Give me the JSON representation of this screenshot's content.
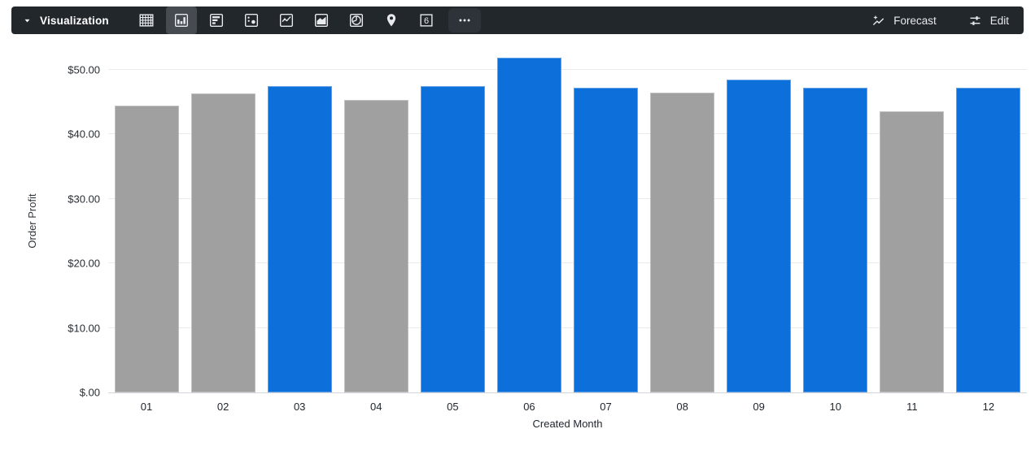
{
  "toolbar": {
    "title": "Visualization",
    "viz_types": [
      {
        "name": "table",
        "selected": false
      },
      {
        "name": "column-chart",
        "selected": true
      },
      {
        "name": "bar-chart",
        "selected": false
      },
      {
        "name": "scatter",
        "selected": false
      },
      {
        "name": "line-chart",
        "selected": false
      },
      {
        "name": "area-chart",
        "selected": false
      },
      {
        "name": "pie-chart",
        "selected": false
      },
      {
        "name": "map-pin",
        "selected": false
      },
      {
        "name": "single-value",
        "selected": false,
        "label": "6"
      },
      {
        "name": "more",
        "selected": false
      }
    ],
    "forecast_label": "Forecast",
    "edit_label": "Edit"
  },
  "colors": {
    "toolbar_bg": "#22272c",
    "toolbar_selected_bg": "#454b51",
    "icon_color": "#e8eaed",
    "blue": "#0d6fd9",
    "gray": "#a0a0a1",
    "gridline": "#eaeaea",
    "axis_text": "#282e34"
  },
  "chart_data": {
    "type": "bar",
    "title": "",
    "categories": [
      "01",
      "02",
      "03",
      "04",
      "05",
      "06",
      "07",
      "08",
      "09",
      "10",
      "11",
      "12"
    ],
    "values": [
      44.5,
      46.3,
      47.5,
      45.4,
      47.5,
      51.9,
      47.2,
      46.5,
      48.5,
      47.2,
      43.6,
      47.2
    ],
    "bar_colors": [
      "gray",
      "gray",
      "blue",
      "gray",
      "blue",
      "blue",
      "blue",
      "gray",
      "blue",
      "blue",
      "gray",
      "blue"
    ],
    "xlabel": "Created Month",
    "ylabel": "Order Profit",
    "ylim": [
      0,
      53.4
    ],
    "grid": true,
    "legend": false,
    "yticks": [
      {
        "value": 0,
        "label": "$.00"
      },
      {
        "value": 10,
        "label": "$10.00"
      },
      {
        "value": 20,
        "label": "$20.00"
      },
      {
        "value": 30,
        "label": "$30.00"
      },
      {
        "value": 40,
        "label": "$40.00"
      },
      {
        "value": 50,
        "label": "$50.00"
      }
    ]
  }
}
